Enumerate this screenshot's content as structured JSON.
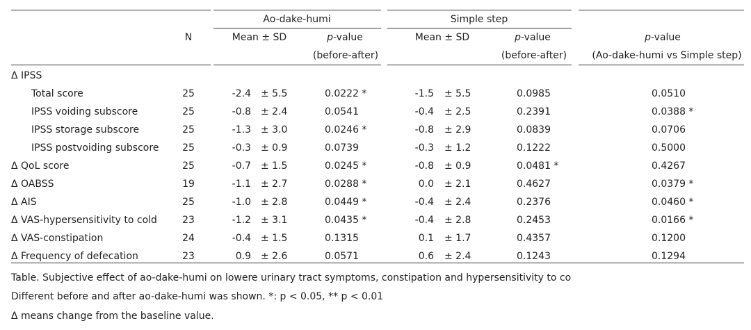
{
  "header": {
    "group1": "Ao-dake-humi",
    "group2": "Simple step",
    "n_label": "N",
    "mean_sd": "Mean ± SD",
    "p_italic": "p",
    "p_suffix": "-value",
    "before_after": "(before-after)",
    "comparison": "(Ao-dake-humi vs Simple step)"
  },
  "rows": [
    {
      "label": "Δ IPSS",
      "indent": false,
      "n": "",
      "ao_mean": "",
      "ao_sd": "",
      "ao_p": "",
      "ss_mean": "",
      "ss_sd": "",
      "ss_p": "",
      "cmp_p": ""
    },
    {
      "label": "Total score",
      "indent": true,
      "n": "25",
      "ao_mean": "-2.4",
      "ao_sd": "± 5.5",
      "ao_p": "0.0222 *",
      "ss_mean": "-1.5",
      "ss_sd": "± 5.5",
      "ss_p": "0.0985",
      "cmp_p": "0.0510"
    },
    {
      "label": "IPSS voiding subscore",
      "indent": true,
      "n": "25",
      "ao_mean": "-0.8",
      "ao_sd": "± 2.4",
      "ao_p": "0.0541",
      "ss_mean": "-0.4",
      "ss_sd": "± 2.5",
      "ss_p": "0.2391",
      "cmp_p": "0.0388 *"
    },
    {
      "label": "IPSS storage subscore",
      "indent": true,
      "n": "25",
      "ao_mean": "-1.3",
      "ao_sd": "± 3.0",
      "ao_p": "0.0246 *",
      "ss_mean": "-0.8",
      "ss_sd": "± 2.9",
      "ss_p": "0.0839",
      "cmp_p": "0.0706"
    },
    {
      "label": "IPSS postvoiding subscore",
      "indent": true,
      "n": "25",
      "ao_mean": "-0.3",
      "ao_sd": "± 0.9",
      "ao_p": "0.0739",
      "ss_mean": "-0.3",
      "ss_sd": "± 1.2",
      "ss_p": "0.1222",
      "cmp_p": "0.5000"
    },
    {
      "label": "Δ QoL score",
      "indent": false,
      "n": "25",
      "ao_mean": "-0.7",
      "ao_sd": "± 1.5",
      "ao_p": "0.0245 *",
      "ss_mean": "-0.8",
      "ss_sd": "± 0.9",
      "ss_p": "0.0481 *",
      "cmp_p": "0.4267"
    },
    {
      "label": "Δ OABSS",
      "indent": false,
      "n": "19",
      "ao_mean": "-1.1",
      "ao_sd": "± 2.7",
      "ao_p": "0.0288 *",
      "ss_mean": "0.0",
      "ss_sd": "± 2.1",
      "ss_p": "0.4627",
      "cmp_p": "0.0379 *"
    },
    {
      "label": "Δ AIS",
      "indent": false,
      "n": "25",
      "ao_mean": "-1.0",
      "ao_sd": "± 2.8",
      "ao_p": "0.0449 *",
      "ss_mean": "-0.4",
      "ss_sd": "± 2.4",
      "ss_p": "0.2376",
      "cmp_p": "0.0460 *"
    },
    {
      "label": "Δ VAS-hypersensitivity to cold",
      "indent": false,
      "n": "23",
      "ao_mean": "-1.2",
      "ao_sd": "± 3.1",
      "ao_p": "0.0435 *",
      "ss_mean": "-0.4",
      "ss_sd": "± 2.8",
      "ss_p": "0.2453",
      "cmp_p": "0.0166 *"
    },
    {
      "label": "Δ VAS-constipation",
      "indent": false,
      "n": "24",
      "ao_mean": "-0.4",
      "ao_sd": "± 1.5",
      "ao_p": "0.1315",
      "ss_mean": "0.1",
      "ss_sd": "± 1.7",
      "ss_p": "0.4357",
      "cmp_p": "0.1200"
    },
    {
      "label": "Δ Frequency of defecation",
      "indent": false,
      "n": "23",
      "ao_mean": "0.9",
      "ao_sd": "± 2.6",
      "ao_p": "0.0571",
      "ss_mean": "0.6",
      "ss_sd": "± 2.4",
      "ss_p": "0.1243",
      "cmp_p": "0.1294"
    }
  ],
  "captions": {
    "line1": "Table. Subjective effect of ao-dake-humi on lowere urinary tract symptoms, constipation and hypersensitivity to co",
    "line2": "Different before and after ao-dake-humi was shown. *: p < 0.05, ** p < 0.01",
    "line3": "Δ  means change from the baseline value."
  }
}
